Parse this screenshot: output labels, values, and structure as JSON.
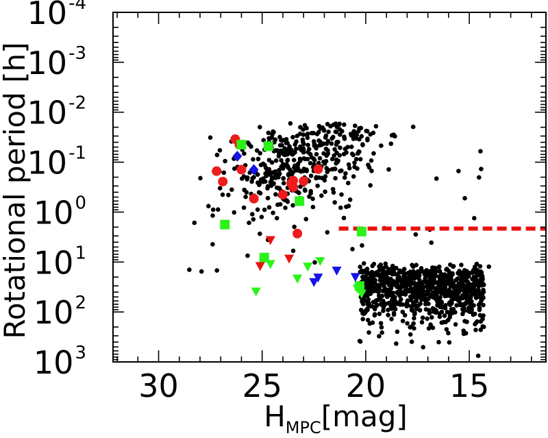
{
  "chart_data": {
    "type": "scatter",
    "xlabel": {
      "main": "H",
      "subscript": "MPC",
      "suffix": "[mag]"
    },
    "ylabel": "Rotational period [h]",
    "x_axis": {
      "range": [
        32.2,
        11.3
      ],
      "reversed": true,
      "ticks": [
        30,
        25,
        20,
        15
      ],
      "tick_labels": [
        "30",
        "25",
        "20",
        "15"
      ]
    },
    "y_axis": {
      "scale": "log",
      "range_exponent": [
        -4,
        3
      ],
      "inverted": true,
      "ticks": [
        {
          "base": "10",
          "exp": "-4"
        },
        {
          "base": "10",
          "exp": "-3"
        },
        {
          "base": "10",
          "exp": "-2"
        },
        {
          "base": "10",
          "exp": "-1"
        },
        {
          "base": "10",
          "exp": "0"
        },
        {
          "base": "10",
          "exp": "1"
        },
        {
          "base": "10",
          "exp": "2"
        },
        {
          "base": "10",
          "exp": "3"
        }
      ]
    },
    "grid": false,
    "reference_line": {
      "y_log10": 0.33,
      "x_from": 21.3,
      "x_to": 11.3,
      "color": "#e8120c",
      "style": "dashed"
    },
    "background_cloud": {
      "description": "black dots",
      "color": "#000000",
      "count": 1100,
      "seed": 7
    },
    "series": [
      {
        "name": "red circles",
        "marker": "circle",
        "color": "#ee1c1c",
        "points": [
          [
            26.3,
            -1.46
          ],
          [
            26.1,
            -1.35
          ],
          [
            27.2,
            -0.82
          ],
          [
            26.0,
            -0.85
          ],
          [
            26.9,
            -0.61
          ],
          [
            25.4,
            -0.27
          ],
          [
            24.0,
            -0.35
          ],
          [
            23.6,
            -0.58
          ],
          [
            23.5,
            -0.63
          ],
          [
            23.5,
            -0.5
          ],
          [
            23.0,
            -0.62
          ],
          [
            22.3,
            -0.86
          ],
          [
            23.3,
            0.43
          ]
        ]
      },
      {
        "name": "green squares",
        "marker": "square",
        "color": "#2cf21a",
        "points": [
          [
            26.0,
            -1.35
          ],
          [
            24.7,
            -1.32
          ],
          [
            26.8,
            0.25
          ],
          [
            24.9,
            0.91
          ],
          [
            23.2,
            -0.22
          ],
          [
            20.2,
            0.39
          ],
          [
            20.3,
            1.48
          ]
        ]
      },
      {
        "name": "blue diamonds",
        "marker": "diamond",
        "color": "#1414e6",
        "points": [
          [
            26.2,
            -1.12
          ],
          [
            25.4,
            -0.85
          ]
        ]
      },
      {
        "name": "red triangles down",
        "marker": "triangle-down",
        "color": "#e8120c",
        "points": [
          [
            25.1,
            1.07
          ],
          [
            24.6,
            0.55
          ],
          [
            23.7,
            0.92
          ]
        ]
      },
      {
        "name": "green triangles down",
        "marker": "triangle-down",
        "color": "#2cf21a",
        "points": [
          [
            25.3,
            1.58
          ],
          [
            24.6,
            1.03
          ],
          [
            23.3,
            1.32
          ],
          [
            22.8,
            1.08
          ],
          [
            22.2,
            0.97
          ],
          [
            20.4,
            1.52
          ],
          [
            20.2,
            1.62
          ]
        ]
      },
      {
        "name": "blue triangles down",
        "marker": "triangle-down",
        "color": "#1414e6",
        "points": [
          [
            22.5,
            1.39
          ],
          [
            22.3,
            1.3
          ],
          [
            21.4,
            1.16
          ],
          [
            20.5,
            1.29
          ]
        ]
      }
    ]
  }
}
